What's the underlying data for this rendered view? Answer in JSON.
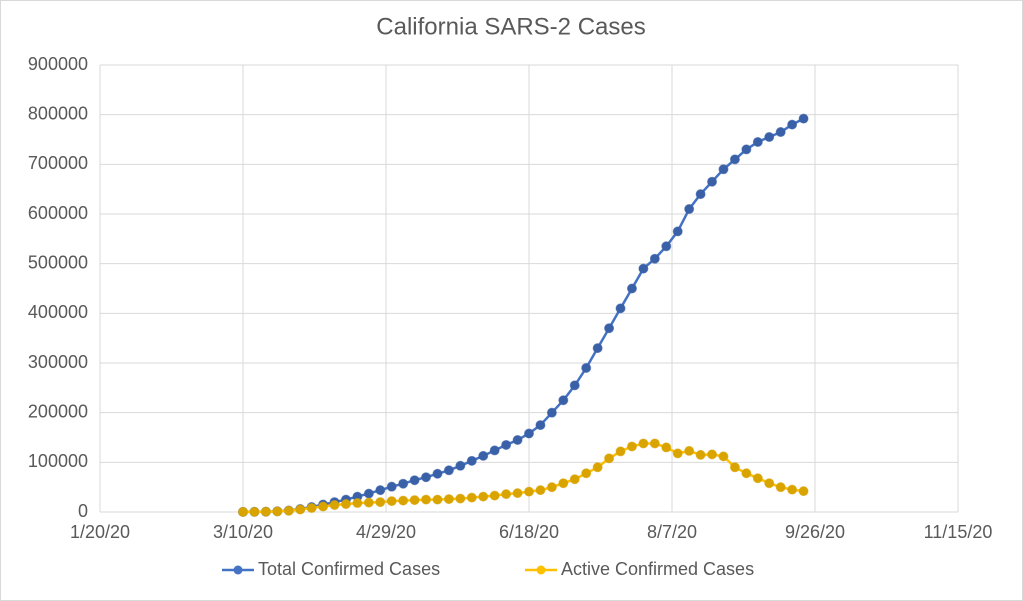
{
  "chart_data": {
    "type": "line",
    "title": "California SARS-2 Cases",
    "x": [
      "3/10/20",
      "3/14/20",
      "3/18/20",
      "3/22/20",
      "3/26/20",
      "3/30/20",
      "4/3/20",
      "4/7/20",
      "4/11/20",
      "4/15/20",
      "4/19/20",
      "4/23/20",
      "4/27/20",
      "5/1/20",
      "5/5/20",
      "5/9/20",
      "5/13/20",
      "5/17/20",
      "5/21/20",
      "5/25/20",
      "5/29/20",
      "6/2/20",
      "6/6/20",
      "6/10/20",
      "6/14/20",
      "6/18/20",
      "6/22/20",
      "6/26/20",
      "6/30/20",
      "7/4/20",
      "7/8/20",
      "7/12/20",
      "7/16/20",
      "7/20/20",
      "7/24/20",
      "7/28/20",
      "8/1/20",
      "8/5/20",
      "8/9/20",
      "8/13/20",
      "8/17/20",
      "8/21/20",
      "8/25/20",
      "8/29/20",
      "9/2/20",
      "9/6/20",
      "9/10/20",
      "9/14/20",
      "9/18/20",
      "9/22/20"
    ],
    "series": [
      {
        "name": "Total Confirmed Cases",
        "color": "#4472c4",
        "values": [
          200,
          400,
          700,
          1500,
          3000,
          6000,
          10000,
          15000,
          20000,
          25000,
          31000,
          37000,
          44000,
          51000,
          57000,
          64000,
          70000,
          77000,
          84000,
          93000,
          103000,
          113000,
          124000,
          135000,
          145000,
          158000,
          175000,
          200000,
          225000,
          255000,
          290000,
          330000,
          370000,
          410000,
          450000,
          490000,
          510000,
          535000,
          565000,
          610000,
          640000,
          665000,
          690000,
          710000,
          730000,
          745000,
          755000,
          765000,
          780000,
          792000
        ]
      },
      {
        "name": "Active Confirmed Cases",
        "color": "#ffc000",
        "values": [
          150,
          300,
          600,
          1200,
          2500,
          5000,
          8000,
          11000,
          14000,
          16000,
          18000,
          19000,
          20000,
          22000,
          23000,
          24000,
          25000,
          25000,
          26000,
          27000,
          29000,
          31000,
          33000,
          36000,
          38000,
          41000,
          44000,
          50000,
          58000,
          66000,
          78000,
          90000,
          108000,
          122000,
          132000,
          138000,
          138000,
          130000,
          118000,
          123000,
          115000,
          116000,
          112000,
          90000,
          78000,
          68000,
          58000,
          50000,
          45000,
          42000
        ]
      }
    ],
    "xlim": [
      "1/20/20",
      "11/15/20"
    ],
    "xticks": [
      "1/20/20",
      "3/10/20",
      "4/29/20",
      "6/18/20",
      "8/7/20",
      "9/26/20",
      "11/15/20"
    ],
    "ylim": [
      0,
      900000
    ],
    "yticks": [
      0,
      100000,
      200000,
      300000,
      400000,
      500000,
      600000,
      700000,
      800000,
      900000
    ],
    "grid": true,
    "legend": "bottom"
  }
}
